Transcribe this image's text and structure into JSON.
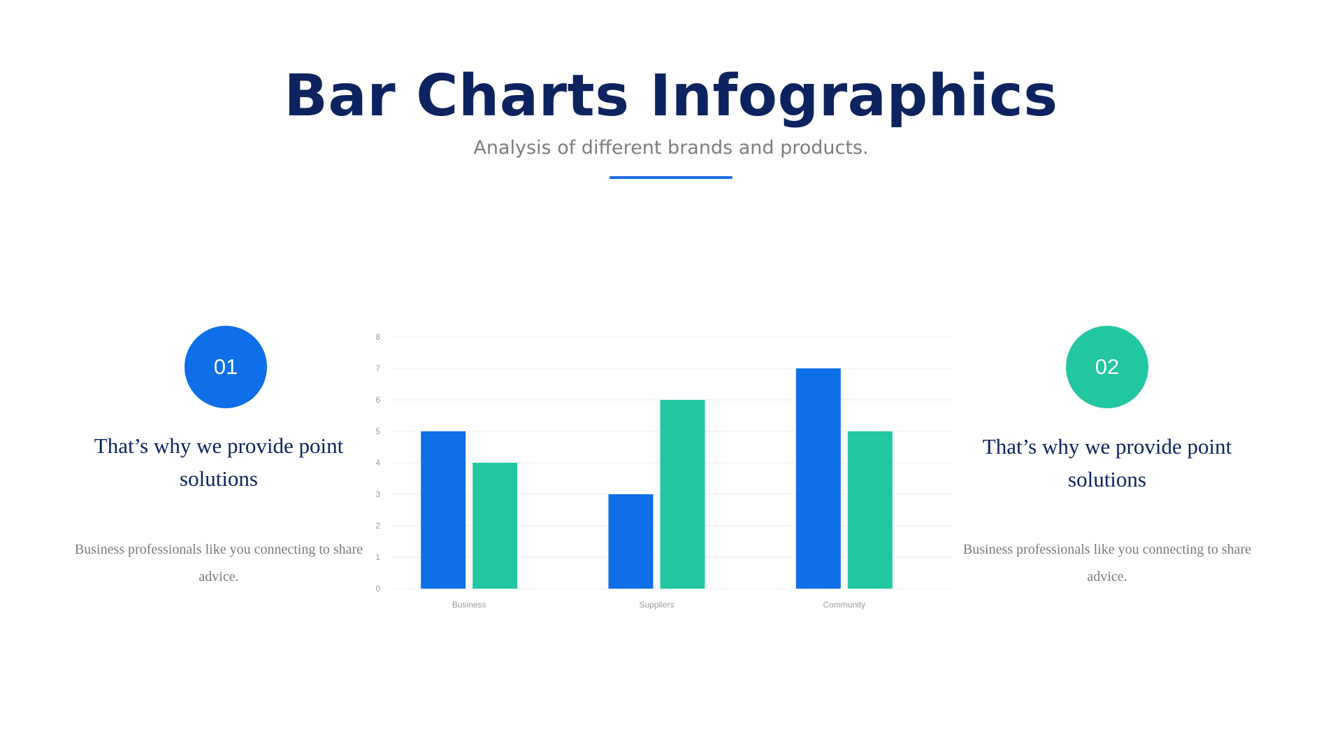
{
  "slide": {
    "title": "Bar Charts Infographics",
    "subtitle": "Analysis of different brands and products.",
    "accent_color": "#1a6fe0",
    "title_color": "#0d2360"
  },
  "left_panel": {
    "number": "01",
    "heading": "That’s why we provide point solutions",
    "description": "Business professionals like you connecting to share advice.",
    "color": "#0f6fe8"
  },
  "right_panel": {
    "number": "02",
    "heading": "That’s why we provide point solutions",
    "description": "Business professionals like you connecting to share advice.",
    "color": "#22c6a1"
  },
  "chart_data": {
    "type": "bar",
    "title": "",
    "xlabel": "",
    "ylabel": "",
    "categories": [
      "Business",
      "Suppliers",
      "Community"
    ],
    "series": [
      {
        "color": "#0f6fe8",
        "values": [
          5,
          3,
          7
        ]
      },
      {
        "color": "#22c6a1",
        "values": [
          4,
          6,
          5
        ]
      }
    ],
    "ylim": [
      0,
      8
    ],
    "yticks": [
      0,
      1,
      2,
      3,
      4,
      5,
      6,
      7,
      8
    ],
    "grid": true,
    "legend": "none"
  }
}
